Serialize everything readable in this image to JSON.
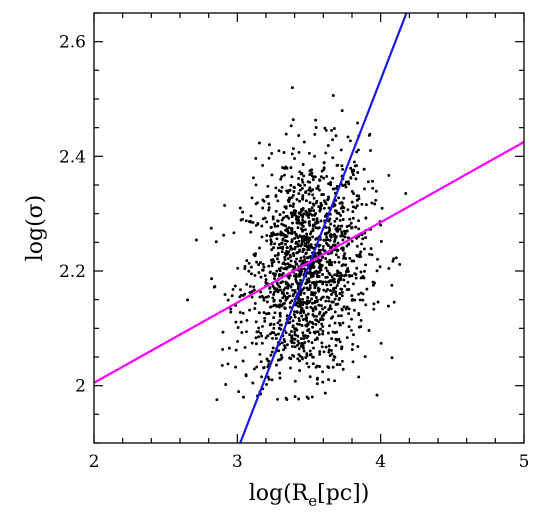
{
  "chart_data": {
    "type": "scatter",
    "title": "",
    "xlabel": "log(R",
    "xlabel_sub": "e",
    "xlabel_unit": "[pc])",
    "ylabel": "log(σ)",
    "xlim": [
      2,
      5
    ],
    "ylim": [
      1.9,
      2.65
    ],
    "x_ticks": [
      2,
      3,
      4,
      5
    ],
    "x_tick_labels": [
      "2",
      "3",
      "4",
      "5"
    ],
    "y_ticks": [
      2.0,
      2.2,
      2.4,
      2.6
    ],
    "y_tick_labels": [
      "2",
      "2.2",
      "2.4",
      "2.6"
    ],
    "grid": false,
    "scatter": {
      "color": "#000000",
      "approx_count": 1600,
      "x_center": 3.48,
      "x_spread": 0.22,
      "y_center": 2.2,
      "y_spread": 0.1
    },
    "lines": [
      {
        "color": "#1a1ae6",
        "points": [
          [
            3.02,
            1.9
          ],
          [
            4.18,
            2.65
          ]
        ]
      },
      {
        "color": "#ff00ff",
        "points": [
          [
            2.0,
            2.005
          ],
          [
            5.0,
            2.425
          ]
        ]
      }
    ]
  }
}
